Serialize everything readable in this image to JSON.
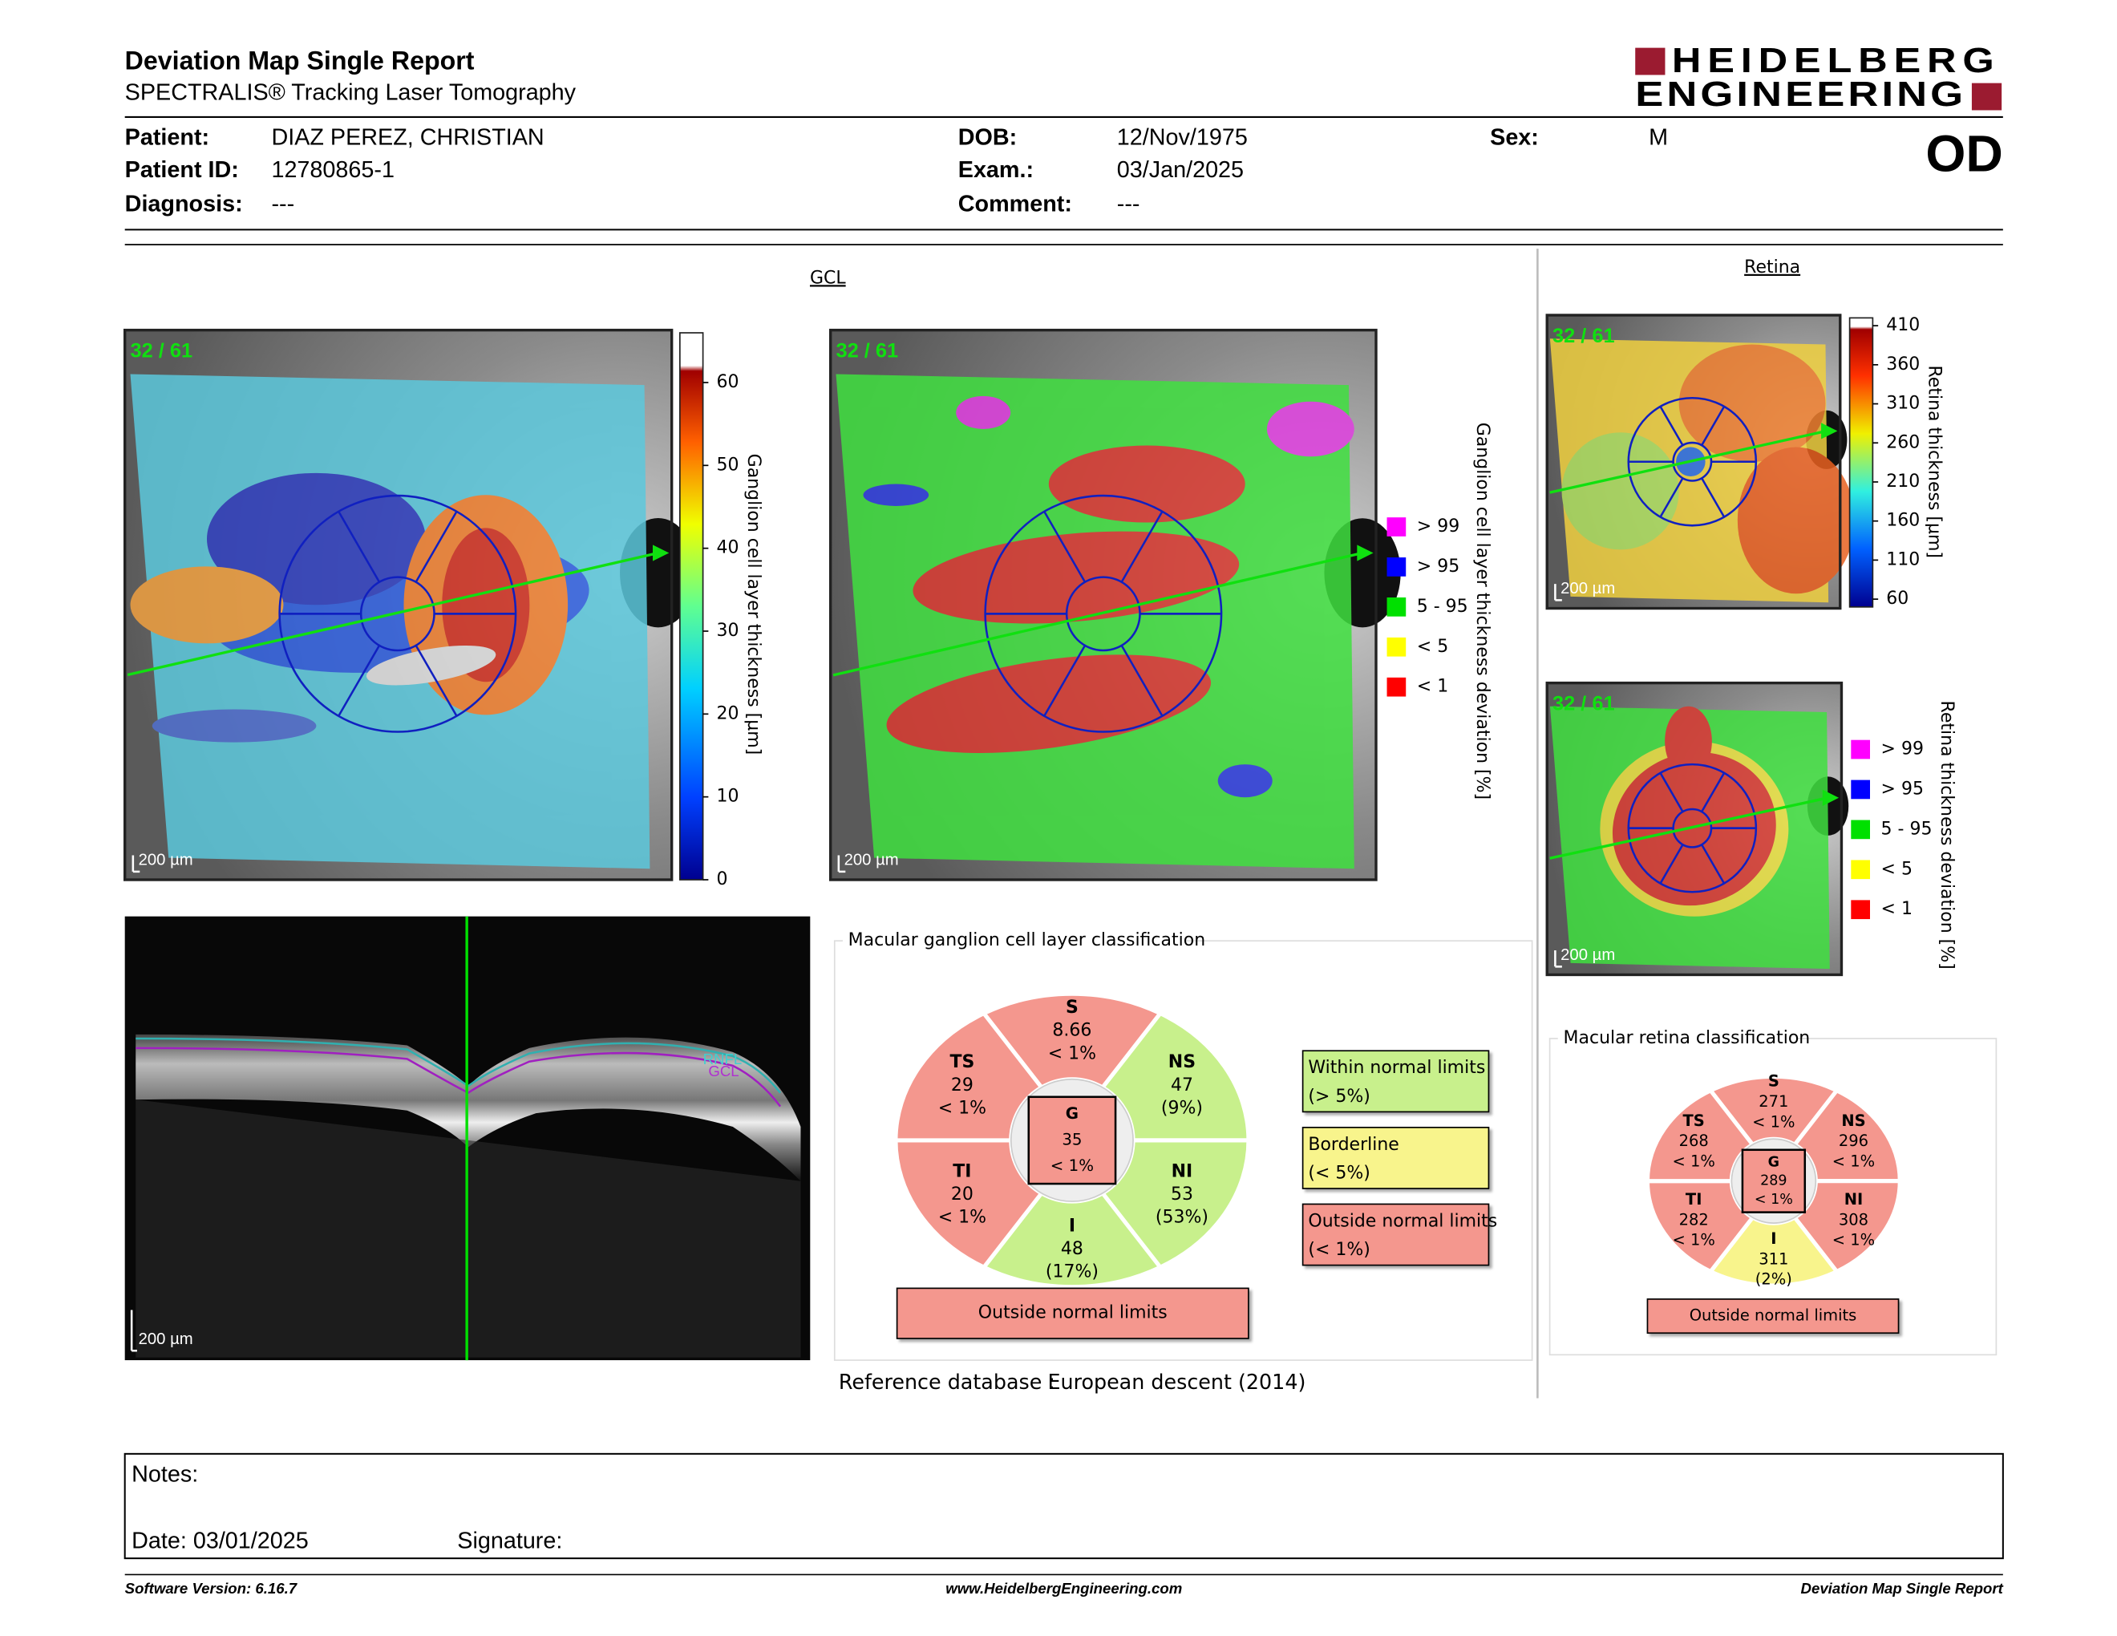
{
  "header": {
    "title": "Deviation Map Single Report",
    "subtitle": "SPECTRALIS® Tracking Laser Tomography",
    "logo_line1": "HEIDELBERG",
    "logo_line2": "ENGINEERING",
    "eye": "OD"
  },
  "patient": {
    "fields": [
      {
        "label": "Patient:",
        "value": "DIAZ PEREZ, CHRISTIAN"
      },
      {
        "label": "Patient ID:",
        "value": "12780865-1"
      },
      {
        "label": "Diagnosis:",
        "value": "---"
      },
      {
        "label": "DOB:",
        "value": "12/Nov/1975"
      },
      {
        "label": "Exam.:",
        "value": "03/Jan/2025"
      },
      {
        "label": "Comment:",
        "value": "---"
      },
      {
        "label": "Sex:",
        "value": "M"
      }
    ]
  },
  "images": {
    "scan_label": "32 / 61",
    "scale_label": "200 µm",
    "oct_layers": [
      "RNFL",
      "GCL"
    ]
  },
  "gcl": {
    "title": "GCL",
    "thickness_axis": "Ganglion cell layer thickness [µm]",
    "thickness_lim": [
      0,
      66
    ],
    "thickness_ticks": [
      0,
      10,
      20,
      30,
      40,
      50,
      60
    ],
    "deviation_axis": "Ganglion cell layer thickness deviation [%]",
    "legend": [
      {
        "label": "> 99",
        "color": "#ff00ff"
      },
      {
        "label": "> 95",
        "color": "#0000ff"
      },
      {
        "label": "5 - 95",
        "color": "#00e000"
      },
      {
        "label": "< 5",
        "color": "#ffff00"
      },
      {
        "label": "< 1",
        "color": "#ff0000"
      }
    ]
  },
  "retina": {
    "title": "Retina",
    "thickness_axis": "Retina thickness [µm]",
    "thickness_lim": [
      50,
      420
    ],
    "thickness_ticks": [
      60,
      110,
      160,
      210,
      260,
      310,
      360,
      410
    ],
    "deviation_axis": "Retina thickness deviation [%]",
    "legend": [
      {
        "label": "> 99",
        "color": "#ff00ff"
      },
      {
        "label": "> 95",
        "color": "#0000ff"
      },
      {
        "label": "5 - 95",
        "color": "#00e000"
      },
      {
        "label": "< 5",
        "color": "#ffff00"
      },
      {
        "label": "< 1",
        "color": "#ff0000"
      }
    ]
  },
  "gcl_classification": {
    "title": "Macular ganglion cell layer classification",
    "sectors": [
      {
        "name": "S",
        "value": 8.66,
        "percentile": "< 1%",
        "color": "#f4978e"
      },
      {
        "name": "NS",
        "value": 47,
        "percentile": "(9%)",
        "color": "#c8f08c"
      },
      {
        "name": "NI",
        "value": 53,
        "percentile": "(53%)",
        "color": "#c8f08c"
      },
      {
        "name": "I",
        "value": 48,
        "percentile": "(17%)",
        "color": "#c8f08c"
      },
      {
        "name": "TI",
        "value": 20,
        "percentile": "< 1%",
        "color": "#f4978e"
      },
      {
        "name": "TS",
        "value": 29,
        "percentile": "< 1%",
        "color": "#f4978e"
      },
      {
        "name": "G",
        "value": 35,
        "percentile": "< 1%",
        "color": "#f4978e"
      }
    ],
    "status": {
      "label": "Outside normal limits",
      "color": "#f4978e"
    },
    "legend": [
      {
        "label": "Within normal limits",
        "range": "(> 5%)",
        "color": "#c8f08c"
      },
      {
        "label": "Borderline",
        "range": "(< 5%)",
        "color": "#f8f48c"
      },
      {
        "label": "Outside normal limits",
        "range": "(< 1%)",
        "color": "#f4978e"
      }
    ]
  },
  "retina_classification": {
    "title": "Macular retina classification",
    "sectors": [
      {
        "name": "S",
        "value": 271,
        "percentile": "< 1%",
        "color": "#f4978e"
      },
      {
        "name": "NS",
        "value": 296,
        "percentile": "< 1%",
        "color": "#f4978e"
      },
      {
        "name": "NI",
        "value": 308,
        "percentile": "< 1%",
        "color": "#f4978e"
      },
      {
        "name": "I",
        "value": 311,
        "percentile": "(2%)",
        "color": "#f8f48c"
      },
      {
        "name": "TI",
        "value": 282,
        "percentile": "< 1%",
        "color": "#f4978e"
      },
      {
        "name": "TS",
        "value": 268,
        "percentile": "< 1%",
        "color": "#f4978e"
      },
      {
        "name": "G",
        "value": 289,
        "percentile": "< 1%",
        "color": "#f4978e"
      }
    ],
    "status": {
      "label": "Outside normal limits",
      "color": "#f4978e"
    }
  },
  "reference": {
    "label": "Reference database :",
    "value": "European descent (2014)"
  },
  "notes": {
    "label": "Notes:",
    "date": "Date: 03/01/2025",
    "signature": "Signature:"
  },
  "footer": {
    "left": "Software Version: 6.16.7",
    "center": "www.HeidelbergEngineering.com",
    "right": "Deviation Map Single Report"
  }
}
